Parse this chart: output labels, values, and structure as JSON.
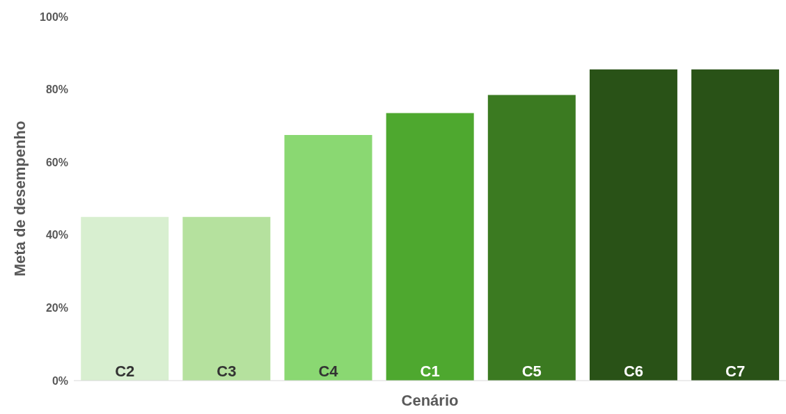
{
  "chart_data": {
    "type": "bar",
    "xlabel": "Cenário",
    "ylabel": "Meta de desempenho",
    "categories": [
      "C2",
      "C3",
      "C4",
      "C1",
      "C5",
      "C6",
      "C7"
    ],
    "values": [
      45,
      45,
      67.5,
      73.5,
      78.5,
      85.5,
      85.5
    ],
    "colors": [
      "#d8efd0",
      "#b5e19e",
      "#8ad872",
      "#4ea82f",
      "#3b7a21",
      "#295217",
      "#295217"
    ],
    "ylim": [
      0,
      100
    ],
    "yticks": [
      {
        "value": 0,
        "label": "0%"
      },
      {
        "value": 20,
        "label": "20%"
      },
      {
        "value": 40,
        "label": "40%"
      },
      {
        "value": 60,
        "label": "60%"
      },
      {
        "value": 80,
        "label": "80%"
      },
      {
        "value": 100,
        "label": "100%"
      }
    ],
    "grid": false
  }
}
